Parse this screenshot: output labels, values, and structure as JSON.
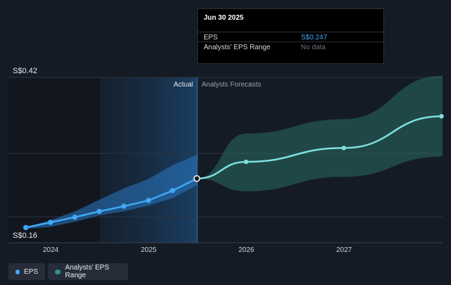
{
  "chart_data": {
    "type": "line",
    "y_axis_top_label": "S$0.42",
    "y_axis_bottom_label": "S$0.16",
    "ylim": [
      0.16,
      0.42
    ],
    "x_ticks": [
      "2024",
      "2025",
      "2026",
      "2027"
    ],
    "actual_label": "Actual",
    "forecast_label": "Analysts Forecasts",
    "series": [
      {
        "name": "EPS",
        "color": "#3fa9f5",
        "x": [
          "2023-09-30",
          "2023-12-31",
          "2024-03-31",
          "2024-06-30",
          "2024-09-30",
          "2024-12-31",
          "2025-03-31",
          "2025-06-30"
        ],
        "values": [
          0.162,
          0.171,
          0.18,
          0.19,
          0.199,
          0.209,
          0.226,
          0.247
        ]
      },
      {
        "name": "Analysts' EPS Range",
        "color": "#7de0e0",
        "x": [
          "2025-06-30",
          "2025-12-31",
          "2026-12-31",
          "2027-12-31"
        ],
        "values": [
          0.247,
          0.276,
          0.3,
          0.355
        ],
        "low": [
          0.247,
          0.225,
          0.25,
          0.285
        ],
        "high": [
          0.247,
          0.325,
          0.35,
          0.425
        ]
      }
    ],
    "actual_band_high": [
      0.162,
      0.175,
      0.19,
      0.21,
      0.23,
      0.246,
      0.27,
      0.288
    ],
    "actual_band_low": [
      0.16,
      0.163,
      0.172,
      0.183,
      0.19,
      0.2,
      0.213,
      0.235
    ]
  },
  "tooltip": {
    "date": "Jun 30 2025",
    "rows": [
      {
        "label": "EPS",
        "value": "S$0.247",
        "value_color": "#3fa9f5"
      },
      {
        "label": "Analysts' EPS Range",
        "value": "No data",
        "value_color": "#6b7380"
      }
    ]
  },
  "legend": {
    "items": [
      {
        "label": "EPS",
        "color": "#3fa9f5"
      },
      {
        "label": "Analysts' EPS Range",
        "color": "#2f8f8f"
      }
    ]
  }
}
